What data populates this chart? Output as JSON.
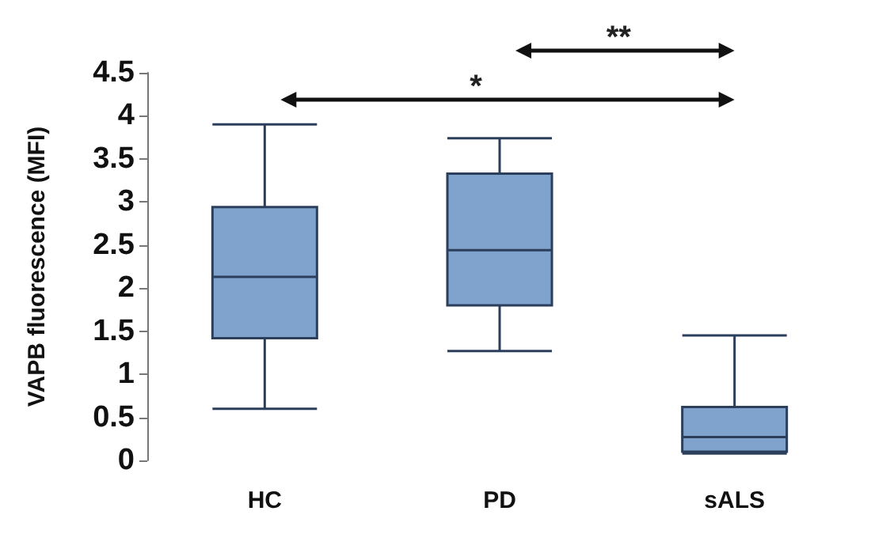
{
  "chart_data": {
    "type": "box",
    "ylabel": "VAPB fluorescence (MFI)",
    "categories": [
      "HC",
      "PD",
      "sALS"
    ],
    "color": "#7fa3cc",
    "boxes": [
      {
        "low": 0.6,
        "q1": 1.42,
        "median": 2.13,
        "q3": 2.94,
        "high": 3.9
      },
      {
        "low": 1.27,
        "q1": 1.8,
        "median": 2.44,
        "q3": 3.33,
        "high": 3.74
      },
      {
        "low": 0.08,
        "q1": 0.1,
        "median": 0.27,
        "q3": 0.62,
        "high": 1.45
      }
    ],
    "ylim": [
      0,
      4.5
    ],
    "yticks": [
      0,
      0.5,
      1,
      1.5,
      2,
      2.5,
      3,
      3.5,
      4,
      4.5
    ],
    "grid": false,
    "annotations": [
      "*",
      "**"
    ]
  }
}
